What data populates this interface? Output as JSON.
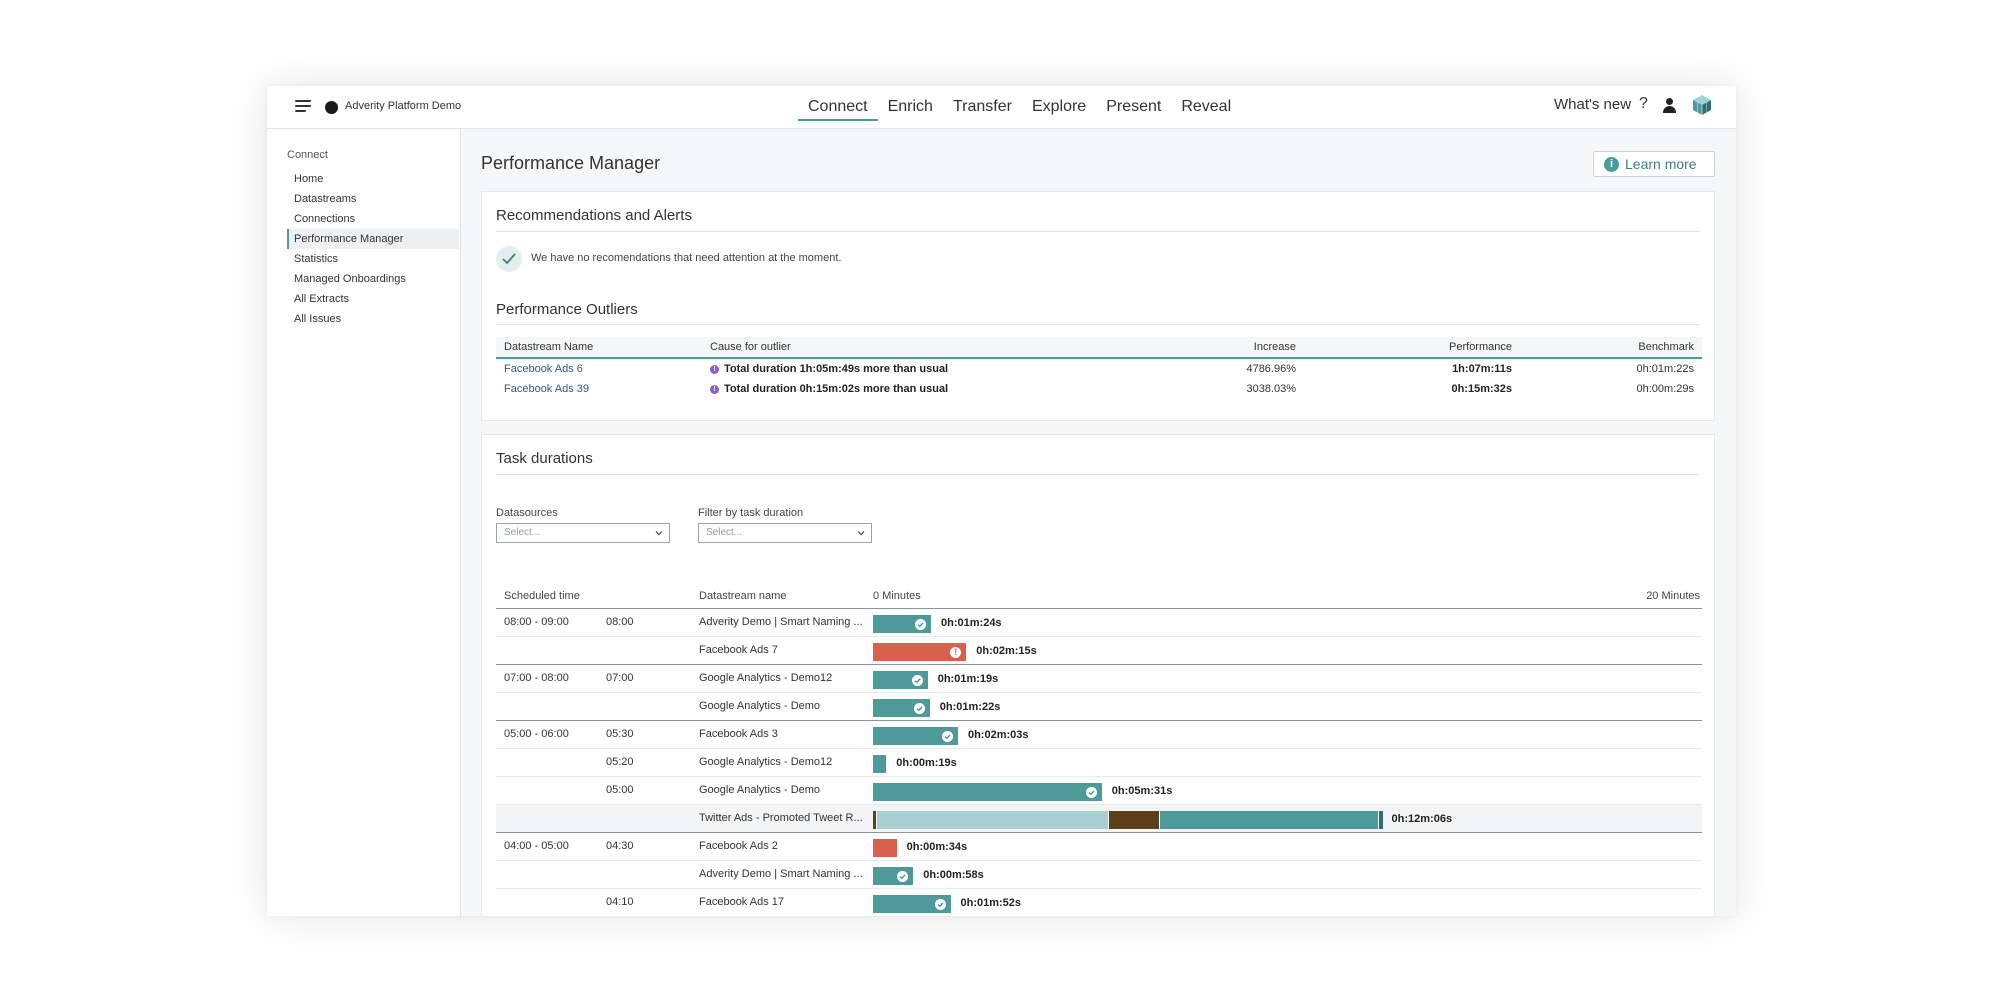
{
  "header": {
    "org_name": "Adverity Platform Demo",
    "nav": [
      "Connect",
      "Enrich",
      "Transfer",
      "Explore",
      "Present",
      "Reveal"
    ],
    "active_nav": "Connect",
    "whats_new": "What's new",
    "help": "?"
  },
  "sidebar": {
    "heading": "Connect",
    "items": [
      "Home",
      "Datastreams",
      "Connections",
      "Performance Manager",
      "Statistics",
      "Managed Onboardings",
      "All Extracts",
      "All Issues"
    ],
    "active": "Performance Manager"
  },
  "page": {
    "title": "Performance Manager",
    "learn_more": "Learn more"
  },
  "recommendations": {
    "title": "Recommendations and Alerts",
    "message": "We have no recomendations that need attention at the moment."
  },
  "outliers": {
    "title": "Performance Outliers",
    "columns": [
      "Datastream Name",
      "Cause for outlier",
      "Increase",
      "Performance",
      "Benchmark"
    ],
    "rows": [
      {
        "name": "Facebook Ads 6",
        "cause": "Total duration 1h:05m:49s more than usual",
        "increase": "4786.96%",
        "performance": "1h:07m:11s",
        "benchmark": "0h:01m:22s"
      },
      {
        "name": "Facebook Ads 39",
        "cause": "Total duration 0h:15m:02s more than usual",
        "increase": "3038.03%",
        "performance": "0h:15m:32s",
        "benchmark": "0h:00m:29s"
      }
    ]
  },
  "tasks": {
    "title": "Task durations",
    "filters": [
      {
        "label": "Datasources",
        "placeholder": "Select..."
      },
      {
        "label": "Filter by task duration",
        "placeholder": "Select..."
      }
    ],
    "columns": {
      "scheduled": "Scheduled time",
      "name": "Datastream name",
      "scale_start": "0 Minutes",
      "scale_end": "20 Minutes"
    },
    "scale_max_minutes": 20,
    "colors": {
      "ok": "#4e9a9b",
      "error": "#d9604c",
      "segment_light": "#a9d0d1",
      "segment_dark": "#5a3f18"
    },
    "rows": [
      {
        "slot": "08:00 - 09:00",
        "time": "08:00",
        "name": "Adverity Demo | Smart Naming ...",
        "duration": "0h:01m:24s",
        "minutes": 1.4,
        "status": "ok",
        "group_start": true
      },
      {
        "slot": "",
        "time": "",
        "name": "Facebook Ads 7",
        "duration": "0h:02m:15s",
        "minutes": 2.25,
        "status": "error",
        "group_start": false
      },
      {
        "slot": "07:00 - 08:00",
        "time": "07:00",
        "name": "Google Analytics - Demo12",
        "duration": "0h:01m:19s",
        "minutes": 1.32,
        "status": "ok",
        "group_start": true
      },
      {
        "slot": "",
        "time": "",
        "name": "Google Analytics - Demo",
        "duration": "0h:01m:22s",
        "minutes": 1.37,
        "status": "ok",
        "group_start": false
      },
      {
        "slot": "05:00 - 06:00",
        "time": "05:30",
        "name": "Facebook Ads 3",
        "duration": "0h:02m:03s",
        "minutes": 2.05,
        "status": "ok",
        "group_start": true
      },
      {
        "slot": "",
        "time": "05:20",
        "name": "Google Analytics - Demo12",
        "duration": "0h:00m:19s",
        "minutes": 0.32,
        "status": "ok",
        "group_start": false
      },
      {
        "slot": "",
        "time": "05:00",
        "name": "Google Analytics - Demo",
        "duration": "0h:05m:31s",
        "minutes": 5.52,
        "status": "ok",
        "group_start": false
      },
      {
        "slot": "",
        "time": "",
        "name": "Twitter Ads - Promoted Tweet R...",
        "duration": "0h:12m:06s",
        "minutes": 12.1,
        "status": "segmented",
        "group_start": false,
        "highlight": true
      },
      {
        "slot": "04:00 - 05:00",
        "time": "04:30",
        "name": "Facebook Ads 2",
        "duration": "0h:00m:34s",
        "minutes": 0.57,
        "status": "error",
        "group_start": true
      },
      {
        "slot": "",
        "time": "",
        "name": "Adverity Demo | Smart Naming ...",
        "duration": "0h:00m:58s",
        "minutes": 0.97,
        "status": "ok",
        "group_start": false
      },
      {
        "slot": "",
        "time": "04:10",
        "name": "Facebook Ads 17",
        "duration": "0h:01m:52s",
        "minutes": 1.87,
        "status": "ok",
        "group_start": false
      }
    ]
  }
}
